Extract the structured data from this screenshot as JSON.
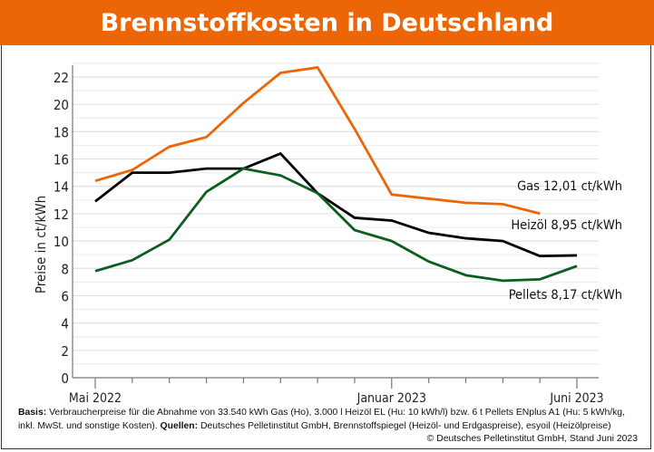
{
  "title": "Brennstoffkosten in Deutschland",
  "chart_data": {
    "type": "line",
    "title": "Brennstoffkosten in Deutschland",
    "ylabel": "Preise in ct/kWh",
    "xlabel": "",
    "x": [
      "2022-05",
      "2022-06",
      "2022-07",
      "2022-08",
      "2022-09",
      "2022-10",
      "2022-11",
      "2022-12",
      "2023-01",
      "2023-02",
      "2023-03",
      "2023-04",
      "2023-05",
      "2023-06"
    ],
    "x_tick_labels": [
      {
        "x": "2022-05",
        "label": "Mai 2022"
      },
      {
        "x": "2023-01",
        "label": "Januar 2023"
      },
      {
        "x": "2023-06",
        "label": "Juni 2023"
      }
    ],
    "ylim": [
      0,
      23
    ],
    "y_ticks": [
      0,
      2,
      4,
      6,
      8,
      10,
      12,
      14,
      16,
      18,
      20,
      22
    ],
    "grid": true,
    "series": [
      {
        "name": "Gas",
        "end_label": "Gas 12,01 ct/kWh",
        "color": "#ec6608",
        "values": [
          14.4,
          15.2,
          16.9,
          17.6,
          20.1,
          22.3,
          22.7,
          18.2,
          13.4,
          13.1,
          12.8,
          12.7,
          12.01,
          null
        ]
      },
      {
        "name": "Heizöl",
        "end_label": "Heizöl  8,95 ct/kWh",
        "color": "#000000",
        "values": [
          12.9,
          15.0,
          15.0,
          15.3,
          15.3,
          16.4,
          13.5,
          11.7,
          11.5,
          10.6,
          10.2,
          10.0,
          8.9,
          8.95
        ]
      },
      {
        "name": "Pellets",
        "end_label": "Pellets  8,17 ct/kWh",
        "color": "#0b5e1e",
        "values": [
          7.8,
          8.6,
          10.1,
          13.6,
          15.3,
          14.8,
          13.5,
          10.8,
          10.0,
          8.5,
          7.5,
          7.1,
          7.2,
          8.17
        ]
      }
    ]
  },
  "footnote": {
    "basis_label": "Basis:",
    "basis_text": " Verbraucherpreise für die Abnahme von 33.540 kWh Gas (Ho), 3.000 l Heizöl EL (Hu: 10 kWh/l) bzw. 6 t Pellets ENplus A1 (Hu: 5 kWh/kg, inkl. MwSt. und sonstige Kosten). ",
    "sources_label": "Quellen:",
    "sources_text": " Deutsches Pelletinstitut GmbH, Brennstoffspiegel (Heizöl- und Erdgaspreise), esyoil (Heizölpreise)",
    "copyright": "© Deutsches Pelletinstitut GmbH, Stand Juni 2023"
  }
}
